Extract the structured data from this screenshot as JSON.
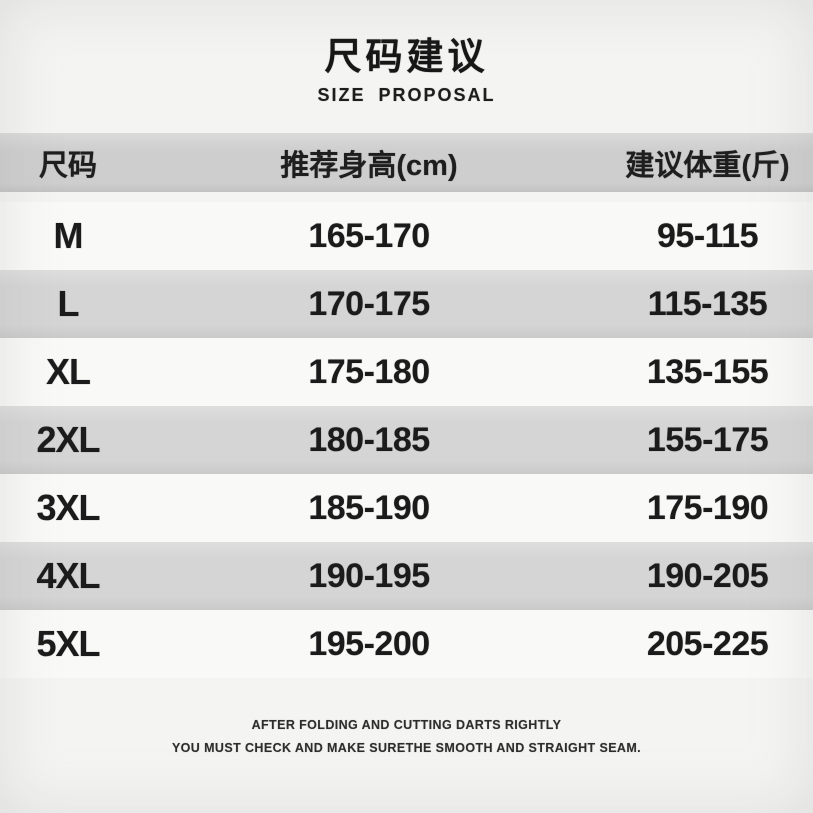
{
  "titles": {
    "zh": "尺码建议",
    "en": "SIZE PROPOSAL"
  },
  "chart_data": {
    "type": "table",
    "title": "尺码建议 (SIZE PROPOSAL)",
    "columns": [
      "尺码",
      "推荐身高(cm)",
      "建议体重(斤)"
    ],
    "rows": [
      [
        "M",
        "165-170",
        "95-115"
      ],
      [
        "L",
        "170-175",
        "115-135"
      ],
      [
        "XL",
        "175-180",
        "135-155"
      ],
      [
        "2XL",
        "180-185",
        "155-175"
      ],
      [
        "3XL",
        "185-190",
        "175-190"
      ],
      [
        "4XL",
        "190-195",
        "190-205"
      ],
      [
        "5XL",
        "195-200",
        "205-225"
      ]
    ],
    "units": {
      "height": "cm",
      "weight": "斤"
    },
    "layout_hints": {
      "striped": true,
      "header_background": "gray",
      "stripe_order": "white-gray-alternating"
    }
  },
  "footer": {
    "line1": "AFTER FOLDING AND CUTTING DARTS RIGHTLY",
    "line2": "YOU MUST CHECK AND MAKE SURETHE SMOOTH AND STRAIGHT SEAM."
  },
  "colors": {
    "background": "#f4f4f2",
    "header_band": "#d0d0d0",
    "row_band": "#d6d6d6",
    "row_light": "#f9f9f8",
    "text": "#1b1b1b"
  }
}
